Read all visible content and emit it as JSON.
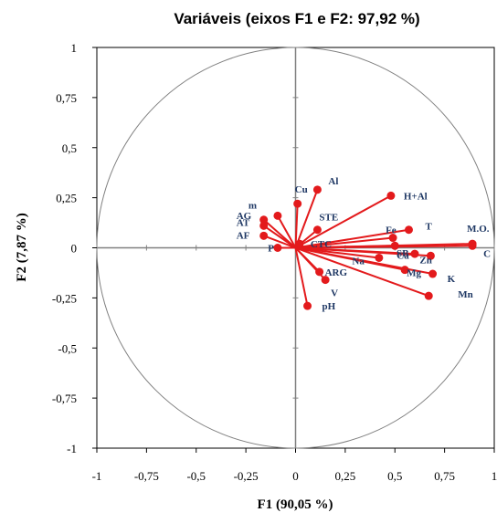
{
  "chart_data": {
    "type": "scatter",
    "title": "Variáveis (eixos F1 e F2: 97,92 %)",
    "xlabel": "F1 (90,05 %)",
    "ylabel": "F2 (7,87 %)",
    "xlim": [
      -1,
      1
    ],
    "ylim": [
      -1,
      1
    ],
    "xticks": [
      -1,
      -0.75,
      -0.5,
      -0.25,
      0,
      0.25,
      0.5,
      0.75,
      1
    ],
    "yticks": [
      -1,
      -0.75,
      -0.5,
      -0.25,
      0,
      0.25,
      0.5,
      0.75,
      1
    ],
    "xtick_labels": [
      "-1",
      "-0,75",
      "-0,5",
      "-0,25",
      "0",
      "0,25",
      "0,5",
      "0,75",
      "1"
    ],
    "ytick_labels": [
      "-1",
      "-0,75",
      "-0,5",
      "-0,25",
      "0",
      "0,25",
      "0,5",
      "0,75",
      "1"
    ],
    "correlation_circle": true,
    "vector_color": "#e31a1c",
    "label_color": "#1f3864",
    "points": [
      {
        "label": "Al",
        "x": 0.11,
        "y": 0.29
      },
      {
        "label": "Cu",
        "x": 0.01,
        "y": 0.22
      },
      {
        "label": "m",
        "x": -0.09,
        "y": 0.16
      },
      {
        "label": "AG",
        "x": -0.16,
        "y": 0.14
      },
      {
        "label": "AT",
        "x": -0.16,
        "y": 0.11
      },
      {
        "label": "AF",
        "x": -0.16,
        "y": 0.06
      },
      {
        "label": "P",
        "x": -0.09,
        "y": 0.0
      },
      {
        "label": "STE",
        "x": 0.11,
        "y": 0.09
      },
      {
        "label": "H+Al",
        "x": 0.48,
        "y": 0.26
      },
      {
        "label": "T",
        "x": 0.57,
        "y": 0.09
      },
      {
        "label": "Fe",
        "x": 0.49,
        "y": 0.05
      },
      {
        "label": "M.O.",
        "x": 0.89,
        "y": 0.02
      },
      {
        "label": "C",
        "x": 0.89,
        "y": 0.01
      },
      {
        "label": "Ca",
        "x": 0.5,
        "y": 0.01
      },
      {
        "label": "SB",
        "x": 0.6,
        "y": -0.03
      },
      {
        "label": "Zn",
        "x": 0.68,
        "y": -0.04
      },
      {
        "label": "Na",
        "x": 0.42,
        "y": -0.05
      },
      {
        "label": "Mg",
        "x": 0.55,
        "y": -0.11
      },
      {
        "label": "K",
        "x": 0.69,
        "y": -0.13
      },
      {
        "label": "Mn",
        "x": 0.67,
        "y": -0.24
      },
      {
        "label": "ARG",
        "x": 0.12,
        "y": -0.12
      },
      {
        "label": "V",
        "x": 0.15,
        "y": -0.16
      },
      {
        "label": "pH",
        "x": 0.06,
        "y": -0.29
      },
      {
        "label": "CTC",
        "x": 0.02,
        "y": 0.02
      }
    ]
  }
}
